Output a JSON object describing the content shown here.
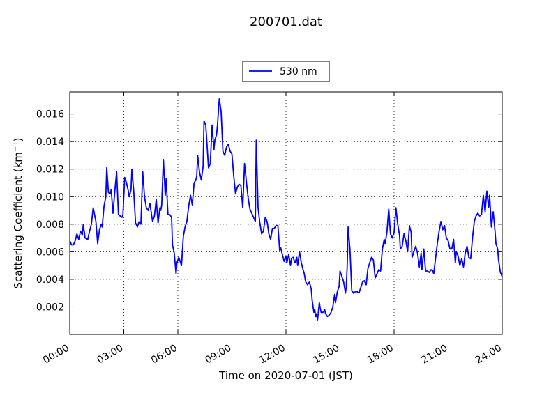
{
  "chart_data": {
    "type": "line",
    "title": "200701.dat",
    "xlabel": "Time on 2020-07-01 (JST)",
    "ylabel": "Scattering Coefficient (km",
    "ylabel_sup": "−1",
    "ylabel_end": ")",
    "xlim": [
      0,
      24
    ],
    "ylim": [
      0.0,
      0.0176
    ],
    "grid": true,
    "legend_position": "top-center",
    "x_ticks": [
      0,
      3,
      6,
      9,
      12,
      15,
      18,
      21,
      24
    ],
    "x_tick_labels": [
      "00:00",
      "03:00",
      "06:00",
      "09:00",
      "12:00",
      "15:00",
      "18:00",
      "21:00",
      "24:00"
    ],
    "y_ticks": [
      0.002,
      0.004,
      0.006,
      0.008,
      0.01,
      0.012,
      0.014,
      0.016
    ],
    "y_tick_labels": [
      "0.002",
      "0.004",
      "0.006",
      "0.008",
      "0.010",
      "0.012",
      "0.014",
      "0.016"
    ],
    "series": [
      {
        "name": "530 nm",
        "color": "#0000ff",
        "points": [
          [
            0.0,
            0.0068
          ],
          [
            0.1,
            0.0065
          ],
          [
            0.2,
            0.0065
          ],
          [
            0.3,
            0.0068
          ],
          [
            0.4,
            0.0073
          ],
          [
            0.5,
            0.0069
          ],
          [
            0.6,
            0.0075
          ],
          [
            0.7,
            0.0072
          ],
          [
            0.75,
            0.008
          ],
          [
            0.85,
            0.007
          ],
          [
            1.0,
            0.0069
          ],
          [
            1.1,
            0.0075
          ],
          [
            1.2,
            0.008
          ],
          [
            1.3,
            0.0092
          ],
          [
            1.45,
            0.0082
          ],
          [
            1.55,
            0.0066
          ],
          [
            1.65,
            0.0076
          ],
          [
            1.75,
            0.008
          ],
          [
            1.8,
            0.0078
          ],
          [
            1.9,
            0.0093
          ],
          [
            2.0,
            0.01
          ],
          [
            2.05,
            0.0121
          ],
          [
            2.15,
            0.0103
          ],
          [
            2.25,
            0.0102
          ],
          [
            2.3,
            0.0105
          ],
          [
            2.4,
            0.0088
          ],
          [
            2.5,
            0.0104
          ],
          [
            2.6,
            0.0118
          ],
          [
            2.7,
            0.0087
          ],
          [
            2.8,
            0.0086
          ],
          [
            2.9,
            0.0085
          ],
          [
            2.95,
            0.0087
          ],
          [
            3.05,
            0.0114
          ],
          [
            3.15,
            0.011
          ],
          [
            3.25,
            0.0104
          ],
          [
            3.3,
            0.01
          ],
          [
            3.4,
            0.0105
          ],
          [
            3.45,
            0.012
          ],
          [
            3.55,
            0.0104
          ],
          [
            3.65,
            0.0081
          ],
          [
            3.75,
            0.0078
          ],
          [
            3.85,
            0.0082
          ],
          [
            3.95,
            0.008
          ],
          [
            4.05,
            0.0118
          ],
          [
            4.15,
            0.01
          ],
          [
            4.25,
            0.0092
          ],
          [
            4.35,
            0.009
          ],
          [
            4.45,
            0.0095
          ],
          [
            4.55,
            0.0086
          ],
          [
            4.6,
            0.0082
          ],
          [
            4.7,
            0.0086
          ],
          [
            4.8,
            0.0098
          ],
          [
            4.9,
            0.0081
          ],
          [
            5.0,
            0.0092
          ],
          [
            5.05,
            0.009
          ],
          [
            5.1,
            0.0094
          ],
          [
            5.2,
            0.0127
          ],
          [
            5.3,
            0.0101
          ],
          [
            5.35,
            0.0113
          ],
          [
            5.45,
            0.0087
          ],
          [
            5.55,
            0.0087
          ],
          [
            5.65,
            0.0085
          ],
          [
            5.7,
            0.0065
          ],
          [
            5.8,
            0.0059
          ],
          [
            5.9,
            0.0044
          ],
          [
            5.95,
            0.0052
          ],
          [
            6.05,
            0.0056
          ],
          [
            6.15,
            0.0052
          ],
          [
            6.2,
            0.005
          ],
          [
            6.3,
            0.0071
          ],
          [
            6.4,
            0.0078
          ],
          [
            6.5,
            0.0082
          ],
          [
            6.6,
            0.0093
          ],
          [
            6.7,
            0.0101
          ],
          [
            6.8,
            0.0094
          ],
          [
            6.9,
            0.011
          ],
          [
            7.0,
            0.0112
          ],
          [
            7.05,
            0.0115
          ],
          [
            7.1,
            0.013
          ],
          [
            7.2,
            0.0118
          ],
          [
            7.3,
            0.0112
          ],
          [
            7.4,
            0.0122
          ],
          [
            7.45,
            0.0155
          ],
          [
            7.55,
            0.0152
          ],
          [
            7.6,
            0.0142
          ],
          [
            7.7,
            0.0121
          ],
          [
            7.8,
            0.0124
          ],
          [
            7.9,
            0.0152
          ],
          [
            8.0,
            0.0134
          ],
          [
            8.05,
            0.0141
          ],
          [
            8.15,
            0.0145
          ],
          [
            8.2,
            0.0152
          ],
          [
            8.3,
            0.0171
          ],
          [
            8.4,
            0.0162
          ],
          [
            8.5,
            0.0133
          ],
          [
            8.6,
            0.013
          ],
          [
            8.7,
            0.0136
          ],
          [
            8.8,
            0.0138
          ],
          [
            8.9,
            0.0133
          ],
          [
            9.0,
            0.0131
          ],
          [
            9.1,
            0.0115
          ],
          [
            9.2,
            0.0102
          ],
          [
            9.3,
            0.0107
          ],
          [
            9.4,
            0.0109
          ],
          [
            9.5,
            0.0108
          ],
          [
            9.6,
            0.0092
          ],
          [
            9.7,
            0.0124
          ],
          [
            9.8,
            0.0111
          ],
          [
            9.9,
            0.0099
          ],
          [
            10.0,
            0.0091
          ],
          [
            10.1,
            0.0088
          ],
          [
            10.2,
            0.0085
          ],
          [
            10.3,
            0.0082
          ],
          [
            10.35,
            0.0141
          ],
          [
            10.45,
            0.0092
          ],
          [
            10.55,
            0.0081
          ],
          [
            10.65,
            0.0073
          ],
          [
            10.75,
            0.0075
          ],
          [
            10.85,
            0.0085
          ],
          [
            10.95,
            0.0082
          ],
          [
            11.05,
            0.0073
          ],
          [
            11.15,
            0.0069
          ],
          [
            11.25,
            0.0077
          ],
          [
            11.35,
            0.0077
          ],
          [
            11.45,
            0.0079
          ],
          [
            11.55,
            0.0079
          ],
          [
            11.65,
            0.0061
          ],
          [
            11.7,
            0.0063
          ],
          [
            11.8,
            0.0058
          ],
          [
            11.9,
            0.0053
          ],
          [
            12.0,
            0.0057
          ],
          [
            12.05,
            0.0052
          ],
          [
            12.15,
            0.0058
          ],
          [
            12.25,
            0.005
          ],
          [
            12.3,
            0.0055
          ],
          [
            12.4,
            0.0056
          ],
          [
            12.5,
            0.0052
          ],
          [
            12.6,
            0.0056
          ],
          [
            12.65,
            0.005
          ],
          [
            12.75,
            0.006
          ],
          [
            12.85,
            0.0052
          ],
          [
            12.95,
            0.0047
          ],
          [
            13.0,
            0.0045
          ],
          [
            13.1,
            0.0038
          ],
          [
            13.2,
            0.0036
          ],
          [
            13.3,
            0.0038
          ],
          [
            13.4,
            0.0033
          ],
          [
            13.45,
            0.0025
          ],
          [
            13.55,
            0.0016
          ],
          [
            13.6,
            0.0018
          ],
          [
            13.65,
            0.0013
          ],
          [
            13.7,
            0.0015
          ],
          [
            13.75,
            0.001
          ],
          [
            13.85,
            0.0023
          ],
          [
            13.9,
            0.0019
          ],
          [
            13.95,
            0.0016
          ],
          [
            14.05,
            0.0016
          ],
          [
            14.15,
            0.0018
          ],
          [
            14.2,
            0.0015
          ],
          [
            14.3,
            0.0013
          ],
          [
            14.4,
            0.0014
          ],
          [
            14.5,
            0.0016
          ],
          [
            14.6,
            0.002
          ],
          [
            14.7,
            0.0029
          ],
          [
            14.75,
            0.0023
          ],
          [
            14.85,
            0.0031
          ],
          [
            14.95,
            0.0035
          ],
          [
            15.0,
            0.0046
          ],
          [
            15.1,
            0.0042
          ],
          [
            15.2,
            0.0038
          ],
          [
            15.3,
            0.003
          ],
          [
            15.35,
            0.0035
          ],
          [
            15.4,
            0.005
          ],
          [
            15.45,
            0.0078
          ],
          [
            15.55,
            0.0062
          ],
          [
            15.65,
            0.0032
          ],
          [
            15.75,
            0.003
          ],
          [
            15.85,
            0.0031
          ],
          [
            15.95,
            0.0031
          ],
          [
            16.05,
            0.003
          ],
          [
            16.15,
            0.0034
          ],
          [
            16.25,
            0.0038
          ],
          [
            16.35,
            0.0039
          ],
          [
            16.45,
            0.0036
          ],
          [
            16.55,
            0.0048
          ],
          [
            16.65,
            0.0052
          ],
          [
            16.75,
            0.0056
          ],
          [
            16.85,
            0.0054
          ],
          [
            16.95,
            0.0041
          ],
          [
            17.05,
            0.0044
          ],
          [
            17.15,
            0.0047
          ],
          [
            17.25,
            0.0046
          ],
          [
            17.35,
            0.0062
          ],
          [
            17.45,
            0.0069
          ],
          [
            17.5,
            0.0066
          ],
          [
            17.6,
            0.0074
          ],
          [
            17.7,
            0.0091
          ],
          [
            17.8,
            0.0073
          ],
          [
            17.9,
            0.007
          ],
          [
            18.0,
            0.0074
          ],
          [
            18.1,
            0.0092
          ],
          [
            18.2,
            0.008
          ],
          [
            18.3,
            0.0072
          ],
          [
            18.35,
            0.0062
          ],
          [
            18.45,
            0.0064
          ],
          [
            18.55,
            0.0073
          ],
          [
            18.65,
            0.0068
          ],
          [
            18.75,
            0.006
          ],
          [
            18.85,
            0.0079
          ],
          [
            18.95,
            0.0074
          ],
          [
            19.0,
            0.0056
          ],
          [
            19.1,
            0.006
          ],
          [
            19.2,
            0.0064
          ],
          [
            19.3,
            0.0059
          ],
          [
            19.4,
            0.0049
          ],
          [
            19.5,
            0.0059
          ],
          [
            19.55,
            0.0047
          ],
          [
            19.65,
            0.0062
          ],
          [
            19.75,
            0.0046
          ],
          [
            19.85,
            0.0046
          ],
          [
            19.95,
            0.0045
          ],
          [
            20.05,
            0.0047
          ],
          [
            20.15,
            0.0046
          ],
          [
            20.2,
            0.0044
          ],
          [
            20.3,
            0.0055
          ],
          [
            20.4,
            0.0066
          ],
          [
            20.5,
            0.0075
          ],
          [
            20.6,
            0.0082
          ],
          [
            20.7,
            0.0076
          ],
          [
            20.8,
            0.0079
          ],
          [
            20.9,
            0.007
          ],
          [
            21.0,
            0.0068
          ],
          [
            21.1,
            0.0062
          ],
          [
            21.2,
            0.0062
          ],
          [
            21.3,
            0.0069
          ],
          [
            21.4,
            0.0052
          ],
          [
            21.45,
            0.006
          ],
          [
            21.55,
            0.0057
          ],
          [
            21.65,
            0.005
          ],
          [
            21.75,
            0.0055
          ],
          [
            21.85,
            0.0049
          ],
          [
            21.95,
            0.0059
          ],
          [
            22.05,
            0.0064
          ],
          [
            22.15,
            0.0056
          ],
          [
            22.25,
            0.0055
          ],
          [
            22.35,
            0.007
          ],
          [
            22.45,
            0.0082
          ],
          [
            22.55,
            0.0086
          ],
          [
            22.65,
            0.0088
          ],
          [
            22.75,
            0.0086
          ],
          [
            22.85,
            0.0087
          ],
          [
            22.95,
            0.0101
          ],
          [
            23.05,
            0.0089
          ],
          [
            23.15,
            0.0104
          ],
          [
            23.25,
            0.0092
          ],
          [
            23.3,
            0.0101
          ],
          [
            23.4,
            0.0078
          ],
          [
            23.5,
            0.0089
          ],
          [
            23.6,
            0.0075
          ],
          [
            23.65,
            0.0066
          ],
          [
            23.75,
            0.0062
          ],
          [
            23.8,
            0.0054
          ],
          [
            23.9,
            0.0045
          ],
          [
            24.0,
            0.0042
          ]
        ]
      }
    ]
  }
}
